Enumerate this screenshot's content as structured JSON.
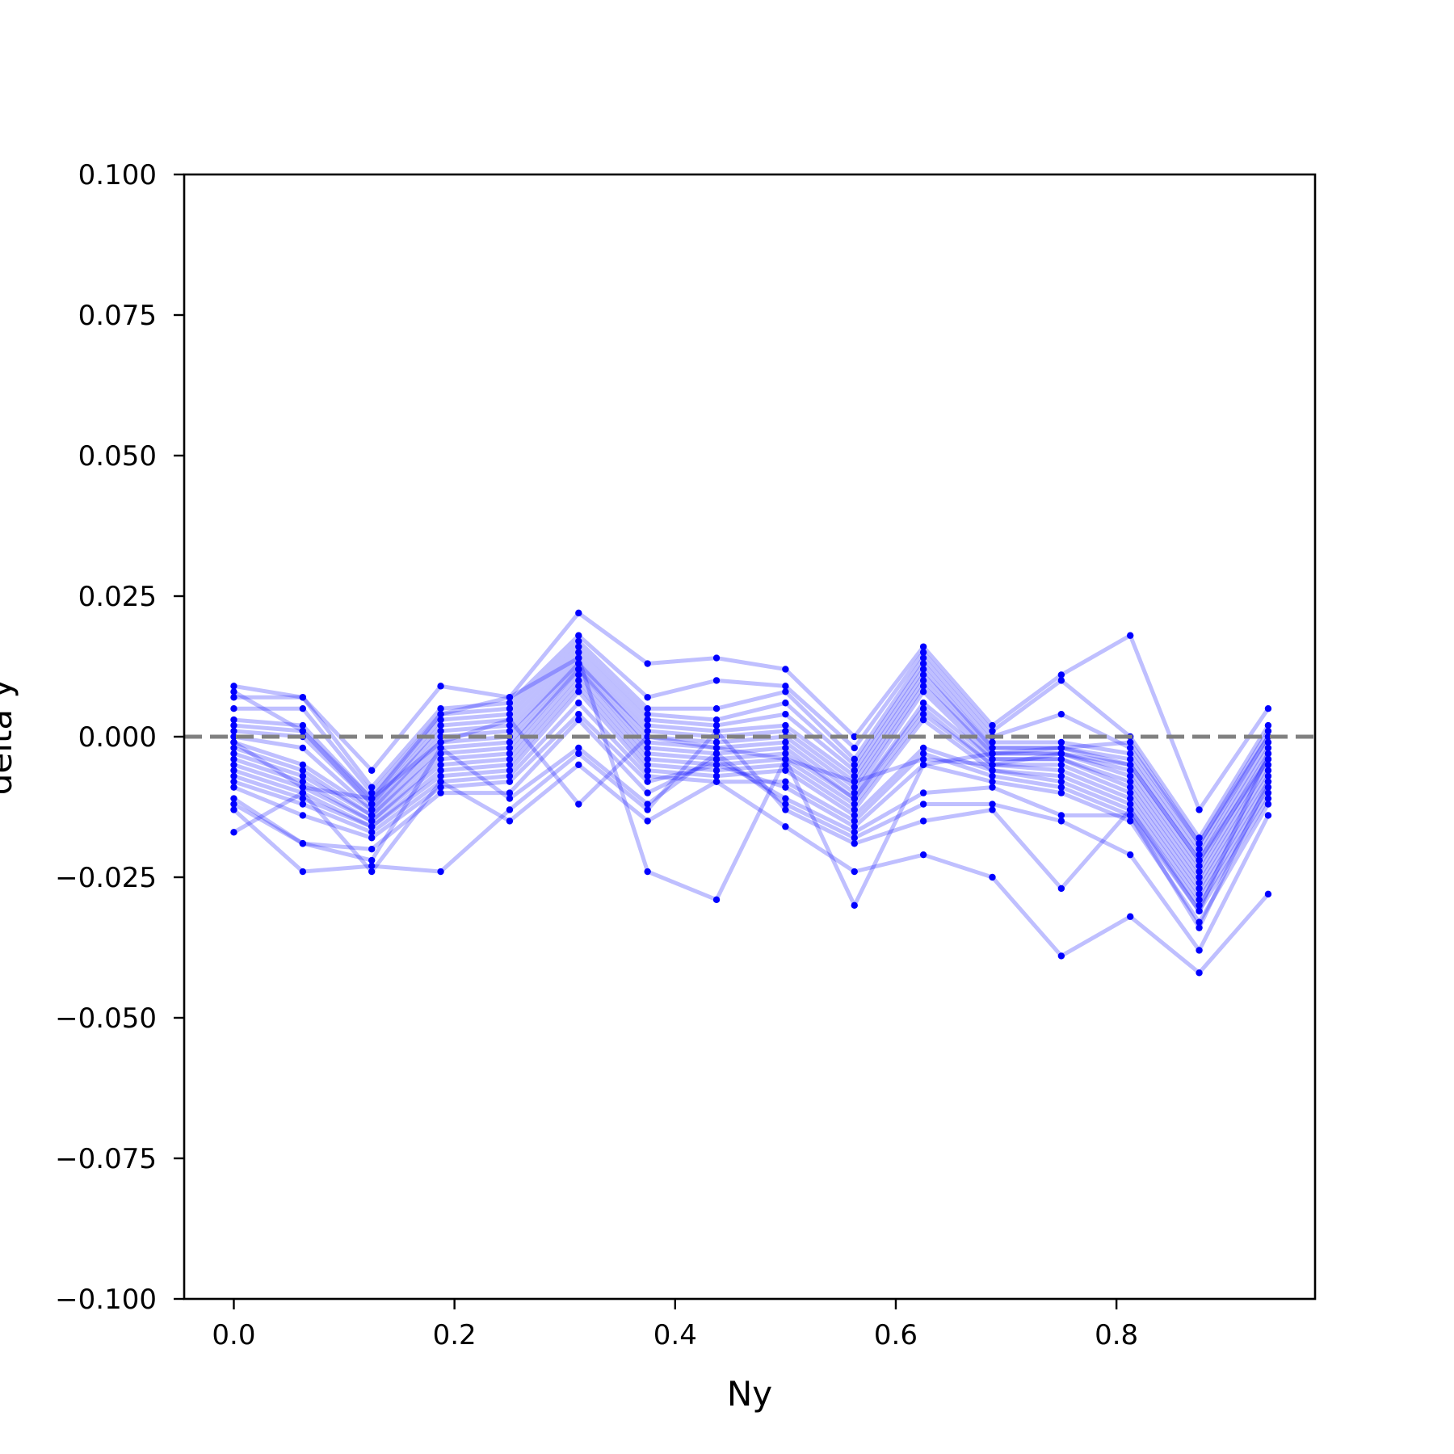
{
  "chart_data": {
    "type": "line",
    "xlabel": "Ny",
    "ylabel": "delta y",
    "xlim": [
      -0.045,
      0.98
    ],
    "ylim": [
      -0.1,
      0.1
    ],
    "xticks": [
      0.0,
      0.2,
      0.4,
      0.6,
      0.8
    ],
    "xtick_labels": [
      "0.0",
      "0.2",
      "0.4",
      "0.6",
      "0.8"
    ],
    "yticks": [
      -0.1,
      -0.075,
      -0.05,
      -0.025,
      0.0,
      0.025,
      0.05,
      0.075,
      0.1
    ],
    "ytick_labels": [
      "−0.100",
      "−0.075",
      "−0.050",
      "−0.025",
      "0.000",
      "0.025",
      "0.050",
      "0.075",
      "0.100"
    ],
    "reference_line": {
      "y": 0.0,
      "style": "dashed",
      "color": "#808080"
    },
    "series_color": "#0000ff",
    "line_alpha": 0.25,
    "grid": false,
    "x": [
      0.0,
      0.0625,
      0.125,
      0.1875,
      0.25,
      0.3125,
      0.375,
      0.4375,
      0.5,
      0.5625,
      0.625,
      0.6875,
      0.75,
      0.8125,
      0.875,
      0.9375
    ],
    "series": [
      {
        "values": [
          0.009,
          0.007,
          -0.006,
          0.009,
          0.007,
          0.022,
          0.013,
          0.014,
          0.012,
          0.0,
          0.016,
          0.002,
          0.011,
          0.018,
          -0.013,
          0.005
        ]
      },
      {
        "values": [
          0.007,
          0.007,
          -0.009,
          0.005,
          0.006,
          0.018,
          0.007,
          0.01,
          0.009,
          -0.002,
          0.015,
          0.001,
          0.01,
          0.0,
          -0.018,
          0.002
        ]
      },
      {
        "values": [
          0.005,
          0.005,
          -0.01,
          0.004,
          0.005,
          0.017,
          0.005,
          0.005,
          0.008,
          -0.004,
          0.014,
          0.0,
          0.004,
          -0.002,
          -0.019,
          0.001
        ]
      },
      {
        "values": [
          0.003,
          0.002,
          -0.011,
          0.003,
          0.004,
          0.016,
          0.004,
          0.003,
          0.006,
          -0.005,
          0.013,
          -0.001,
          -0.001,
          -0.003,
          -0.02,
          0.0
        ]
      },
      {
        "values": [
          0.002,
          0.001,
          -0.012,
          0.002,
          0.003,
          0.015,
          0.003,
          0.002,
          0.004,
          -0.006,
          0.012,
          -0.002,
          -0.002,
          -0.004,
          -0.021,
          -0.001
        ]
      },
      {
        "values": [
          0.001,
          0.0,
          -0.012,
          0.001,
          0.002,
          0.014,
          0.002,
          0.001,
          0.002,
          -0.007,
          0.011,
          -0.002,
          -0.002,
          -0.005,
          -0.022,
          -0.002
        ]
      },
      {
        "values": [
          0.0,
          -0.002,
          -0.013,
          0.0,
          0.001,
          0.013,
          0.001,
          0.0,
          0.001,
          -0.008,
          0.01,
          -0.003,
          -0.003,
          -0.006,
          -0.023,
          -0.003
        ]
      },
      {
        "values": [
          -0.001,
          -0.005,
          -0.013,
          -0.001,
          0.0,
          0.013,
          0.0,
          -0.001,
          0.0,
          -0.009,
          0.009,
          -0.003,
          -0.003,
          -0.007,
          -0.024,
          -0.004
        ]
      },
      {
        "values": [
          -0.002,
          -0.006,
          -0.014,
          -0.002,
          -0.001,
          0.012,
          -0.001,
          -0.002,
          -0.001,
          -0.01,
          0.008,
          -0.004,
          -0.004,
          -0.008,
          -0.025,
          -0.005
        ]
      },
      {
        "values": [
          -0.003,
          -0.007,
          -0.014,
          -0.003,
          -0.002,
          0.012,
          -0.002,
          -0.003,
          -0.002,
          -0.011,
          0.006,
          -0.004,
          -0.004,
          -0.009,
          -0.026,
          -0.006
        ]
      },
      {
        "values": [
          -0.004,
          -0.008,
          -0.015,
          -0.004,
          -0.003,
          0.011,
          -0.003,
          -0.004,
          -0.003,
          -0.011,
          0.005,
          -0.005,
          -0.005,
          -0.01,
          -0.027,
          -0.007
        ]
      },
      {
        "values": [
          -0.005,
          -0.009,
          -0.015,
          -0.005,
          -0.004,
          0.01,
          -0.004,
          -0.005,
          -0.004,
          -0.012,
          0.004,
          -0.005,
          -0.006,
          -0.011,
          -0.028,
          -0.008
        ]
      },
      {
        "values": [
          -0.006,
          -0.01,
          -0.016,
          -0.006,
          -0.005,
          0.009,
          -0.005,
          -0.006,
          -0.005,
          -0.013,
          0.003,
          -0.006,
          -0.007,
          -0.012,
          -0.029,
          -0.009
        ]
      },
      {
        "values": [
          -0.007,
          -0.011,
          -0.016,
          -0.007,
          -0.006,
          0.008,
          -0.006,
          -0.007,
          -0.006,
          -0.014,
          -0.002,
          -0.006,
          -0.008,
          -0.013,
          -0.03,
          -0.01
        ]
      },
      {
        "values": [
          -0.008,
          -0.012,
          -0.017,
          -0.008,
          -0.007,
          0.006,
          -0.007,
          -0.008,
          -0.008,
          -0.015,
          -0.003,
          -0.007,
          -0.009,
          -0.014,
          -0.031,
          -0.011
        ]
      },
      {
        "values": [
          -0.009,
          -0.014,
          -0.018,
          -0.009,
          -0.008,
          0.004,
          -0.008,
          -0.005,
          -0.009,
          -0.016,
          -0.005,
          -0.008,
          -0.01,
          -0.015,
          -0.033,
          -0.012
        ]
      },
      {
        "values": [
          -0.011,
          -0.019,
          -0.02,
          -0.01,
          -0.01,
          0.003,
          -0.01,
          -0.004,
          -0.011,
          -0.017,
          -0.01,
          -0.009,
          -0.014,
          -0.014,
          -0.034,
          -0.008
        ]
      },
      {
        "values": [
          -0.012,
          -0.019,
          -0.022,
          -0.002,
          -0.011,
          -0.002,
          -0.012,
          -0.003,
          -0.012,
          -0.018,
          -0.012,
          -0.012,
          -0.015,
          -0.021,
          -0.038,
          -0.014
        ]
      },
      {
        "values": [
          -0.013,
          -0.024,
          -0.023,
          -0.024,
          -0.013,
          -0.003,
          -0.013,
          0.001,
          -0.013,
          -0.019,
          -0.015,
          -0.013,
          -0.027,
          -0.013,
          -0.031,
          -0.003
        ]
      },
      {
        "values": [
          -0.017,
          -0.01,
          -0.024,
          -0.008,
          -0.015,
          -0.005,
          -0.015,
          -0.008,
          -0.016,
          -0.024,
          -0.021,
          -0.025,
          -0.039,
          -0.032,
          -0.042,
          -0.028
        ]
      },
      {
        "values": [
          0.008,
          0.001,
          -0.011,
          0.004,
          0.007,
          0.014,
          -0.024,
          -0.029,
          -0.004,
          -0.03,
          -0.005,
          -0.003,
          -0.002,
          -0.001,
          -0.019,
          0.0
        ]
      },
      {
        "values": [
          -0.001,
          -0.009,
          -0.011,
          -0.001,
          0.003,
          -0.012,
          0.0,
          -0.002,
          -0.004,
          -0.008,
          -0.004,
          -0.005,
          -0.003,
          -0.005,
          -0.022,
          -0.004
        ]
      }
    ]
  }
}
